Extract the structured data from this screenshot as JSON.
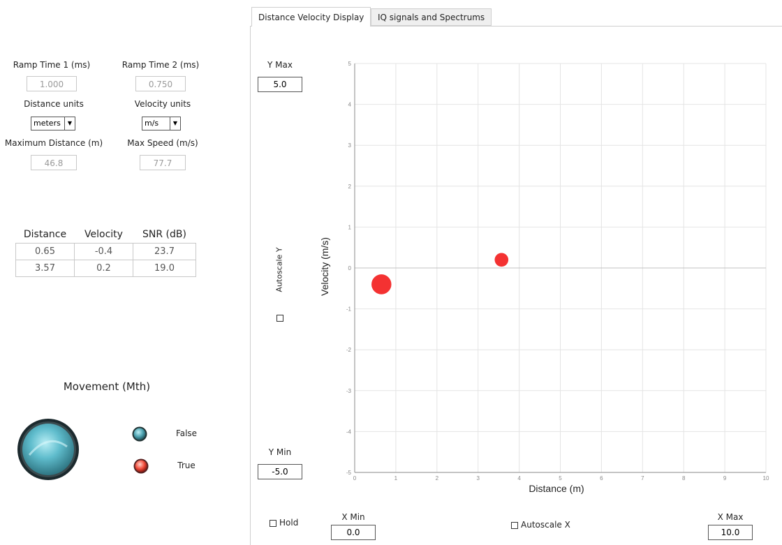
{
  "tabs": [
    {
      "label": "Distance Velocity Display",
      "active": true
    },
    {
      "label": "IQ signals and Spectrums",
      "active": false
    }
  ],
  "settings": {
    "ramp_time_1_label": "Ramp Time 1 (ms)",
    "ramp_time_1_value": "1.000",
    "ramp_time_2_label": "Ramp Time 2 (ms)",
    "ramp_time_2_value": "0.750",
    "distance_units_label": "Distance units",
    "distance_units_value": "meters",
    "velocity_units_label": "Velocity units",
    "velocity_units_value": "m/s",
    "max_distance_label": "Maximum Distance (m)",
    "max_distance_value": "46.8",
    "max_speed_label": "Max Speed (m/s)",
    "max_speed_value": "77.7"
  },
  "targets_table": {
    "headers": [
      "Distance",
      "Velocity",
      "SNR (dB)"
    ],
    "rows": [
      [
        "0.65",
        "-0.4",
        "23.7"
      ],
      [
        "3.57",
        "0.2",
        "19.0"
      ]
    ]
  },
  "movement": {
    "title": "Movement (Mth)",
    "legend_false": "False",
    "legend_true": "True",
    "state": false
  },
  "controls": {
    "y_max_label": "Y Max",
    "y_max_value": "5.0",
    "y_min_label": "Y Min",
    "y_min_value": "-5.0",
    "autoscale_y_label": "Autoscale Y",
    "hold_label": "Hold",
    "x_min_label": "X Min",
    "x_min_value": "0.0",
    "autoscale_x_label": "Autoscale X",
    "x_max_label": "X Max",
    "x_max_value": "10.0"
  },
  "colors": {
    "point": "#f32222",
    "movement_false": "#4aa8b8",
    "movement_true": "#f04a3a",
    "grid": "#e4e4e4",
    "zero_line": "#c0c0c0"
  },
  "chart_data": {
    "type": "scatter",
    "xlabel": "Distance (m)",
    "ylabel": "Velocity (m/s)",
    "xlim": [
      0,
      10
    ],
    "ylim": [
      -5,
      5
    ],
    "x_ticks": [
      "0",
      "1",
      "2",
      "3",
      "4",
      "5",
      "6",
      "7",
      "8",
      "9",
      "10"
    ],
    "y_ticks": [
      "5",
      "4",
      "3",
      "2",
      "1",
      "0",
      "-1",
      "-2",
      "-3",
      "-4",
      "-5"
    ],
    "grid": true,
    "points": [
      {
        "x": 0.65,
        "y": -0.4,
        "snr": 23.7
      },
      {
        "x": 3.57,
        "y": 0.2,
        "snr": 19.0
      }
    ]
  }
}
